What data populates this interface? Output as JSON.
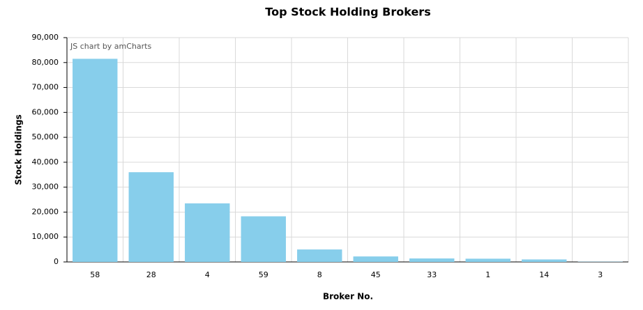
{
  "chart_data": {
    "type": "bar",
    "title": "Top Stock Holding Brokers",
    "x_label": "Broker No.",
    "y_label": "Stock Holdings",
    "credit": "JS chart by amCharts",
    "categories": [
      "58",
      "28",
      "4",
      "59",
      "8",
      "45",
      "33",
      "1",
      "14",
      "3"
    ],
    "values": [
      81500,
      36000,
      23500,
      18300,
      5000,
      2200,
      1400,
      1300,
      1000,
      100
    ],
    "color": "#87ceeb",
    "ylim": [
      0,
      90000
    ],
    "yticks": [
      0,
      {
        "value": 10000,
        "label": "10,000"
      },
      {
        "value": 20000,
        "label": "20,000"
      },
      {
        "value": 30000,
        "label": "30,000"
      },
      {
        "value": 40000,
        "label": "40,000"
      },
      {
        "value": 50000,
        "label": "50,000"
      },
      {
        "value": 60000,
        "label": "60,000"
      },
      {
        "value": 70000,
        "label": "70,000"
      },
      {
        "value": 80000,
        "label": "80,000"
      },
      {
        "value": 90000,
        "label": "90,000"
      }
    ],
    "grid": true
  }
}
